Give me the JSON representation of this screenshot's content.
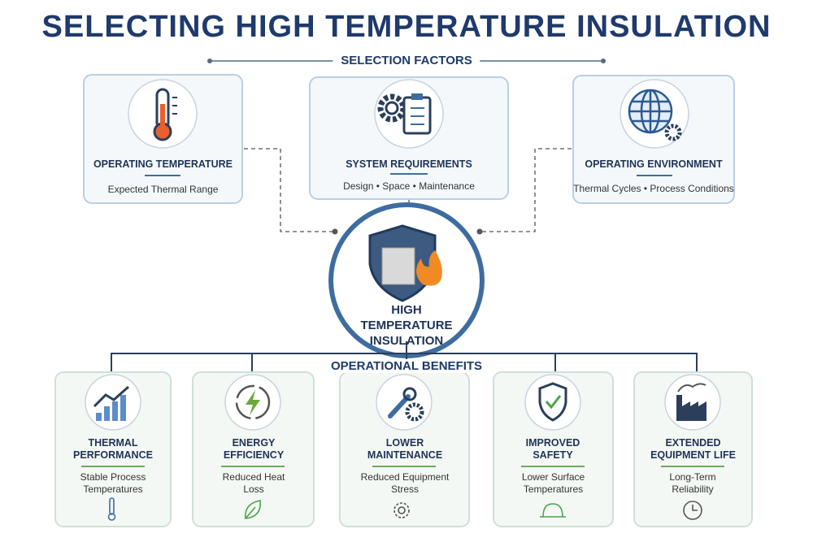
{
  "title": "SELECTING HIGH TEMPERATURE INSULATION",
  "factors_label": "SELECTION FACTORS",
  "factors": [
    {
      "title": "OPERATING TEMPERATURE",
      "subtitle": "Expected Thermal Range"
    },
    {
      "title": "SYSTEM REQUIREMENTS",
      "subtitle": "Design • Space • Maintenance"
    },
    {
      "title": "OPERATING ENVIRONMENT",
      "subtitle": "Thermal Cycles • Process Conditions"
    }
  ],
  "center": "HIGH TEMPERATURE INSULATION",
  "benefits_label": "OPERATIONAL BENEFITS",
  "benefits": [
    {
      "title": "THERMAL PERFORMANCE",
      "subtitle": "Stable Process Temperatures"
    },
    {
      "title": "ENERGY EFFICIENCY",
      "subtitle": "Reduced Heat Loss"
    },
    {
      "title": "LOWER MAINTENANCE",
      "subtitle": "Reduced Equipment Stress"
    },
    {
      "title": "IMPROVED SAFETY",
      "subtitle": "Lower Surface Temperatures"
    },
    {
      "title": "EXTENDED EQUIPMENT LIFE",
      "subtitle": "Long-Term Reliability"
    }
  ]
}
